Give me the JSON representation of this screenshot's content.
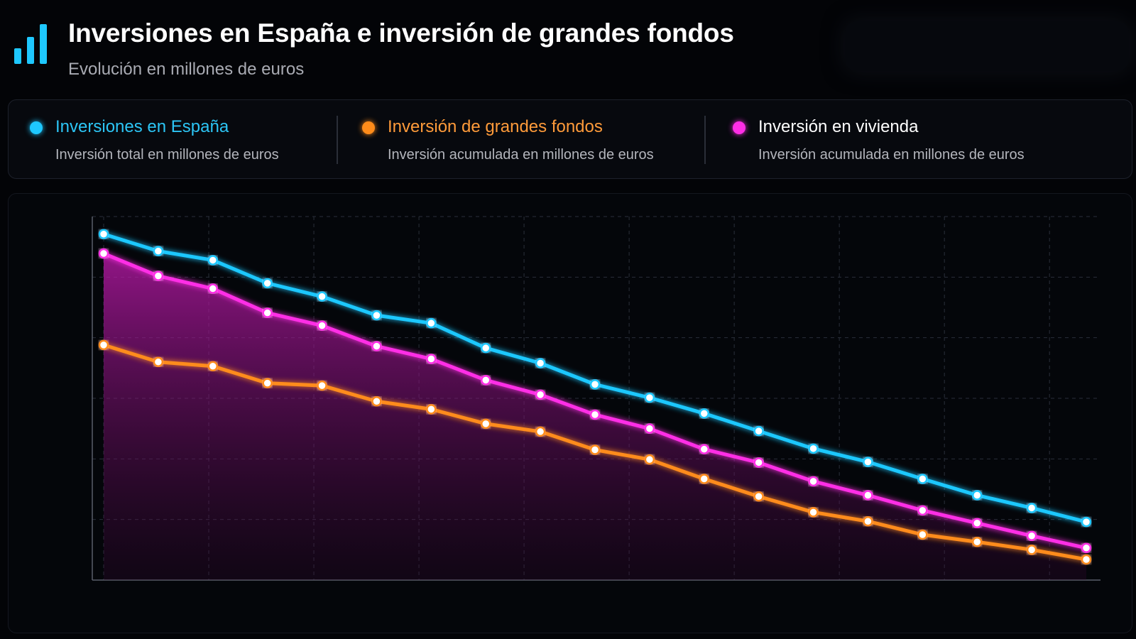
{
  "header": {
    "title": "Inversiones en España e inversión de grandes fondos",
    "subtitle": "Evolución en millones de euros",
    "logo_icon": "bar-chart-icon",
    "logo_color": "#1ec8ff"
  },
  "legend": [
    {
      "name": "Inversiones en España",
      "description": "Inversión total en millones de euros",
      "color": "#1ec8ff",
      "name_color": "#2cc5f5"
    },
    {
      "name": "Inversión de grandes fondos",
      "description": "Inversión acumulada en millones de euros",
      "color": "#ff8c1a",
      "name_color": "#ff9b3a"
    },
    {
      "name": "Inversión en vivienda",
      "description": "Inversión acumulada en millones de euros",
      "color": "#ff2ee6",
      "name_color": "#ffffff"
    }
  ],
  "chart_data": {
    "type": "line",
    "title": "Inversiones en España e inversión de grandes fondos",
    "subtitle": "Evolución en millones de euros",
    "grid": true,
    "legend_placement": "top",
    "x": [
      1,
      2,
      3,
      4,
      5,
      6,
      7,
      8,
      9,
      10,
      11,
      12,
      13,
      14,
      15,
      16,
      17,
      18,
      19
    ],
    "ylim": [
      0,
      600
    ],
    "series": [
      {
        "name": "Inversiones en España",
        "color": "#1ec8ff",
        "values": [
          571,
          543,
          528,
          490,
          468,
          437,
          424,
          383,
          358,
          323,
          301,
          275,
          246,
          217,
          195,
          167,
          140,
          119,
          96
        ]
      },
      {
        "name": "Inversión de grandes fondos",
        "color": "#ff8c1a",
        "values": [
          388,
          360,
          353,
          325,
          321,
          295,
          282,
          258,
          245,
          215,
          199,
          167,
          138,
          112,
          97,
          75,
          63,
          50,
          34
        ]
      },
      {
        "name": "Inversión en vivienda",
        "color": "#ff2ee6",
        "area": true,
        "values": [
          539,
          502,
          481,
          441,
          420,
          386,
          365,
          330,
          306,
          273,
          250,
          216,
          194,
          163,
          140,
          115,
          94,
          73,
          53
        ]
      }
    ]
  }
}
